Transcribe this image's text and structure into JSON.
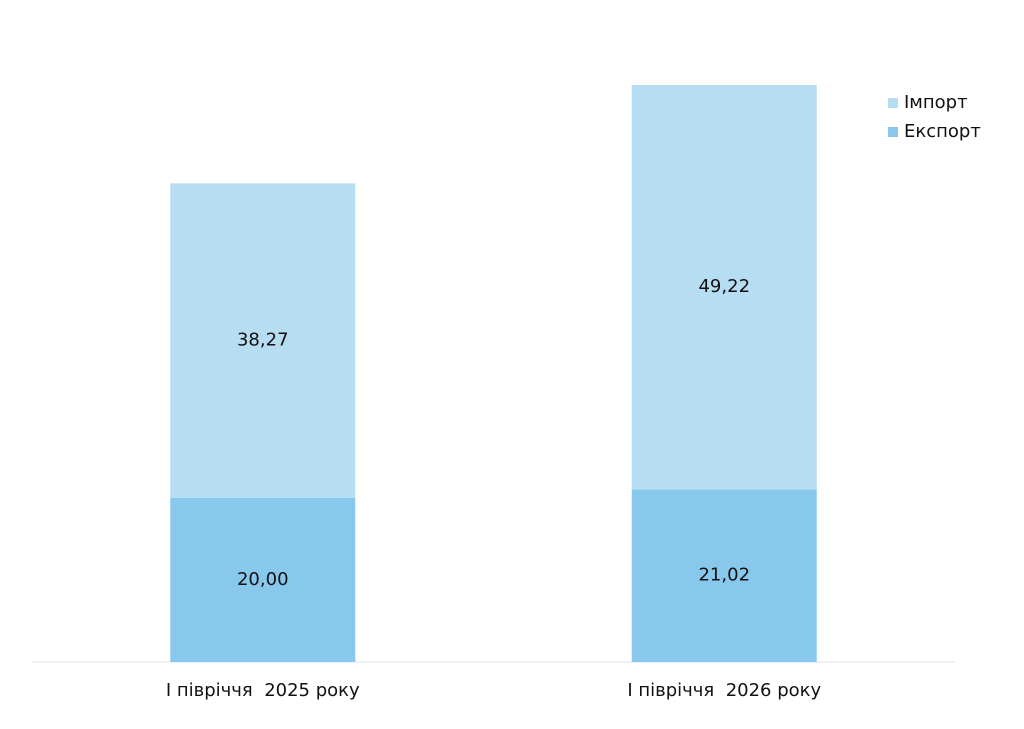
{
  "chart_data": {
    "type": "stacked-bar",
    "categories": [
      "І півріччя  2025 року",
      "І півріччя  2026 року"
    ],
    "series": [
      {
        "name": "Експорт",
        "color": "#88c8ec",
        "values": [
          20.0,
          21.02
        ],
        "value_labels": [
          "20,00",
          "21,02"
        ]
      },
      {
        "name": "Імпорт",
        "color": "#b7ddf3",
        "values": [
          38.27,
          49.22
        ],
        "value_labels": [
          "38,27",
          "49,22"
        ]
      }
    ],
    "legend": "top-right"
  }
}
